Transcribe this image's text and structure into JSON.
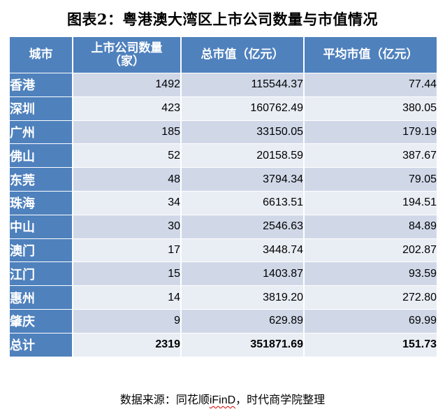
{
  "title": "图表2：粤港澳大湾区上市公司数量与市值情况",
  "table": {
    "headers": [
      "城市",
      "上市公司数量（家）",
      "总市值（亿元）",
      "平均市值（亿元）"
    ],
    "rows": [
      {
        "city": "香港",
        "count": "1492",
        "total": "115544.37",
        "avg": "77.44"
      },
      {
        "city": "深圳",
        "count": "423",
        "total": "160762.49",
        "avg": "380.05"
      },
      {
        "city": "广州",
        "count": "185",
        "total": "33150.05",
        "avg": "179.19"
      },
      {
        "city": "佛山",
        "count": "52",
        "total": "20158.59",
        "avg": "387.67"
      },
      {
        "city": "东莞",
        "count": "48",
        "total": "3794.34",
        "avg": "79.05"
      },
      {
        "city": "珠海",
        "count": "34",
        "total": "6613.51",
        "avg": "194.51"
      },
      {
        "city": "中山",
        "count": "30",
        "total": "2546.63",
        "avg": "84.89"
      },
      {
        "city": "澳门",
        "count": "17",
        "total": "3448.74",
        "avg": "202.87"
      },
      {
        "city": "江门",
        "count": "15",
        "total": "1403.87",
        "avg": "93.59"
      },
      {
        "city": "惠州",
        "count": "14",
        "total": "3819.20",
        "avg": "272.80"
      },
      {
        "city": "肇庆",
        "count": "9",
        "total": "629.89",
        "avg": "69.99"
      }
    ],
    "total": {
      "city": "总计",
      "count": "2319",
      "total": "351871.69",
      "avg": "151.73"
    }
  },
  "source": {
    "prefix": "数据来源：同花顺",
    "brand": "iFinD",
    "suffix": "，时代商学院整理"
  },
  "colors": {
    "header_blue": "#4f81bd",
    "row_dark": "#d0d8e8",
    "row_light": "#e9edf4",
    "spellcheck_underline": "#d00000"
  }
}
